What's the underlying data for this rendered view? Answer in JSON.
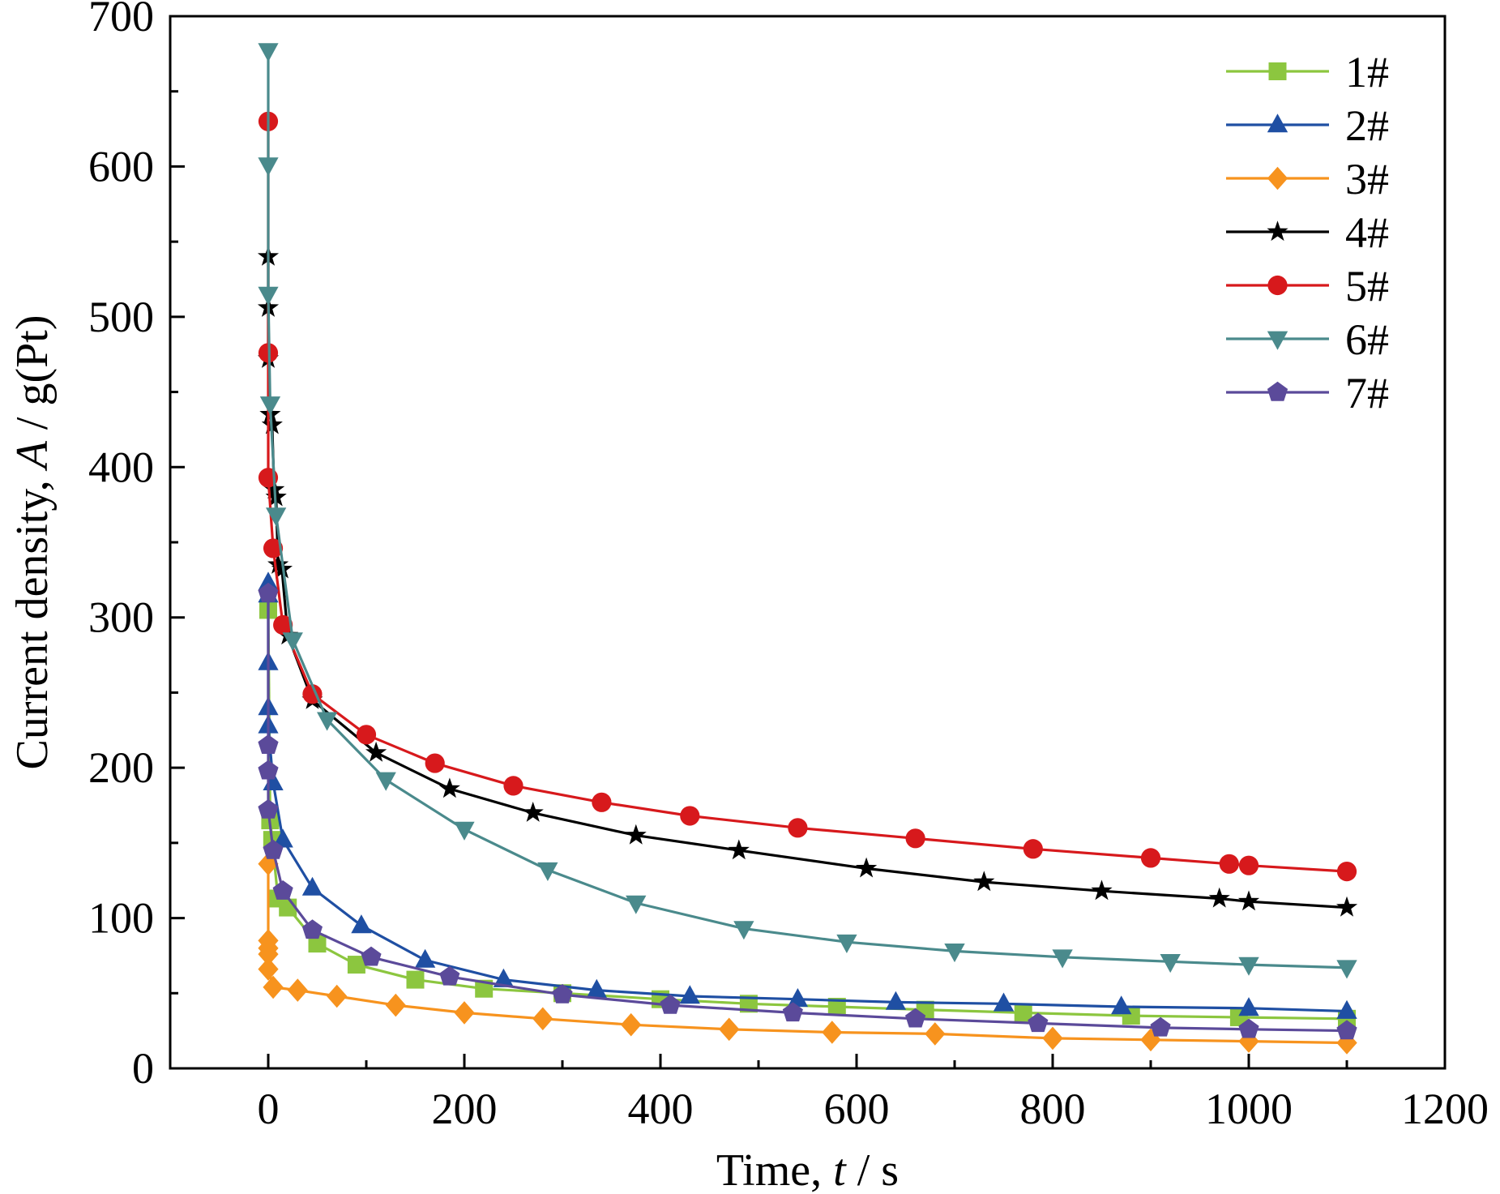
{
  "chart_data": {
    "type": "line",
    "xlabel": {
      "prefix": "Time, ",
      "italic": "t",
      "suffix": " / s"
    },
    "ylabel": {
      "prefix": "Current density, ",
      "italic": "A",
      "suffix": " / g(Pt)"
    },
    "xlim": [
      -100,
      1200
    ],
    "ylim": [
      0,
      700
    ],
    "xticks": [
      0,
      200,
      400,
      600,
      800,
      1000,
      1200
    ],
    "yticks": [
      0,
      100,
      200,
      300,
      400,
      500,
      600,
      700
    ],
    "x_minor_step": 100,
    "y_minor_step": 50,
    "grid": false,
    "legend_position": "top-right",
    "series": [
      {
        "name": "1#",
        "color": "#8cc63f",
        "marker": "square",
        "points": [
          [
            0,
            305
          ],
          [
            2,
            165
          ],
          [
            4,
            152
          ],
          [
            10,
            113
          ],
          [
            20,
            107
          ],
          [
            50,
            83
          ],
          [
            90,
            69
          ],
          [
            150,
            59
          ],
          [
            220,
            53
          ],
          [
            300,
            50
          ],
          [
            400,
            46
          ],
          [
            490,
            43
          ],
          [
            580,
            41
          ],
          [
            670,
            39
          ],
          [
            770,
            37
          ],
          [
            880,
            35
          ],
          [
            990,
            34
          ],
          [
            1100,
            33
          ]
        ]
      },
      {
        "name": "2#",
        "color": "#1f4fa3",
        "marker": "triangle-up",
        "points": [
          [
            0,
            323
          ],
          [
            0,
            315
          ],
          [
            0,
            270
          ],
          [
            0,
            240
          ],
          [
            0,
            228
          ],
          [
            5,
            190
          ],
          [
            15,
            152
          ],
          [
            45,
            120
          ],
          [
            95,
            95
          ],
          [
            160,
            72
          ],
          [
            240,
            59
          ],
          [
            335,
            52
          ],
          [
            430,
            48
          ],
          [
            540,
            46
          ],
          [
            640,
            44
          ],
          [
            750,
            43
          ],
          [
            870,
            41
          ],
          [
            1000,
            40
          ],
          [
            1100,
            38
          ]
        ]
      },
      {
        "name": "3#",
        "color": "#f7931e",
        "marker": "diamond",
        "points": [
          [
            0,
            136
          ],
          [
            0,
            85
          ],
          [
            0,
            80
          ],
          [
            0,
            76
          ],
          [
            0,
            66
          ],
          [
            5,
            54
          ],
          [
            30,
            52
          ],
          [
            70,
            48
          ],
          [
            130,
            42
          ],
          [
            200,
            37
          ],
          [
            280,
            33
          ],
          [
            370,
            29
          ],
          [
            470,
            26
          ],
          [
            575,
            24
          ],
          [
            680,
            23
          ],
          [
            800,
            20
          ],
          [
            900,
            19
          ],
          [
            1000,
            18
          ],
          [
            1100,
            17
          ]
        ]
      },
      {
        "name": "4#",
        "color": "#000000",
        "marker": "star",
        "points": [
          [
            0,
            540
          ],
          [
            0,
            506
          ],
          [
            0,
            472
          ],
          [
            2,
            435
          ],
          [
            4,
            428
          ],
          [
            6,
            385
          ],
          [
            8,
            380
          ],
          [
            10,
            335
          ],
          [
            14,
            332
          ],
          [
            20,
            288
          ],
          [
            45,
            245
          ],
          [
            110,
            210
          ],
          [
            185,
            186
          ],
          [
            270,
            170
          ],
          [
            375,
            155
          ],
          [
            480,
            145
          ],
          [
            610,
            133
          ],
          [
            730,
            124
          ],
          [
            850,
            118
          ],
          [
            970,
            113
          ],
          [
            1000,
            111
          ],
          [
            1100,
            107
          ]
        ]
      },
      {
        "name": "5#",
        "color": "#d7191c",
        "marker": "circle",
        "points": [
          [
            0,
            630
          ],
          [
            0,
            476
          ],
          [
            0,
            393
          ],
          [
            5,
            346
          ],
          [
            15,
            295
          ],
          [
            45,
            249
          ],
          [
            100,
            222
          ],
          [
            170,
            203
          ],
          [
            250,
            188
          ],
          [
            340,
            177
          ],
          [
            430,
            168
          ],
          [
            540,
            160
          ],
          [
            660,
            153
          ],
          [
            780,
            146
          ],
          [
            900,
            140
          ],
          [
            980,
            136
          ],
          [
            1000,
            135
          ],
          [
            1100,
            131
          ]
        ]
      },
      {
        "name": "6#",
        "color": "#4a8a8c",
        "marker": "triangle-down",
        "points": [
          [
            0,
            677
          ],
          [
            0,
            601
          ],
          [
            0,
            515
          ],
          [
            2,
            442
          ],
          [
            8,
            368
          ],
          [
            25,
            285
          ],
          [
            60,
            232
          ],
          [
            120,
            192
          ],
          [
            200,
            159
          ],
          [
            285,
            132
          ],
          [
            375,
            110
          ],
          [
            485,
            93
          ],
          [
            590,
            84
          ],
          [
            700,
            78
          ],
          [
            810,
            74
          ],
          [
            920,
            71
          ],
          [
            1000,
            69
          ],
          [
            1100,
            67
          ]
        ]
      },
      {
        "name": "7#",
        "color": "#5b4a9a",
        "marker": "pentagon",
        "points": [
          [
            0,
            316
          ],
          [
            0,
            215
          ],
          [
            0,
            198
          ],
          [
            0,
            172
          ],
          [
            5,
            145
          ],
          [
            15,
            118
          ],
          [
            45,
            92
          ],
          [
            105,
            74
          ],
          [
            185,
            61
          ],
          [
            300,
            49
          ],
          [
            410,
            42
          ],
          [
            535,
            37
          ],
          [
            660,
            33
          ],
          [
            785,
            30
          ],
          [
            910,
            27
          ],
          [
            1000,
            26
          ],
          [
            1100,
            25
          ]
        ]
      }
    ]
  }
}
